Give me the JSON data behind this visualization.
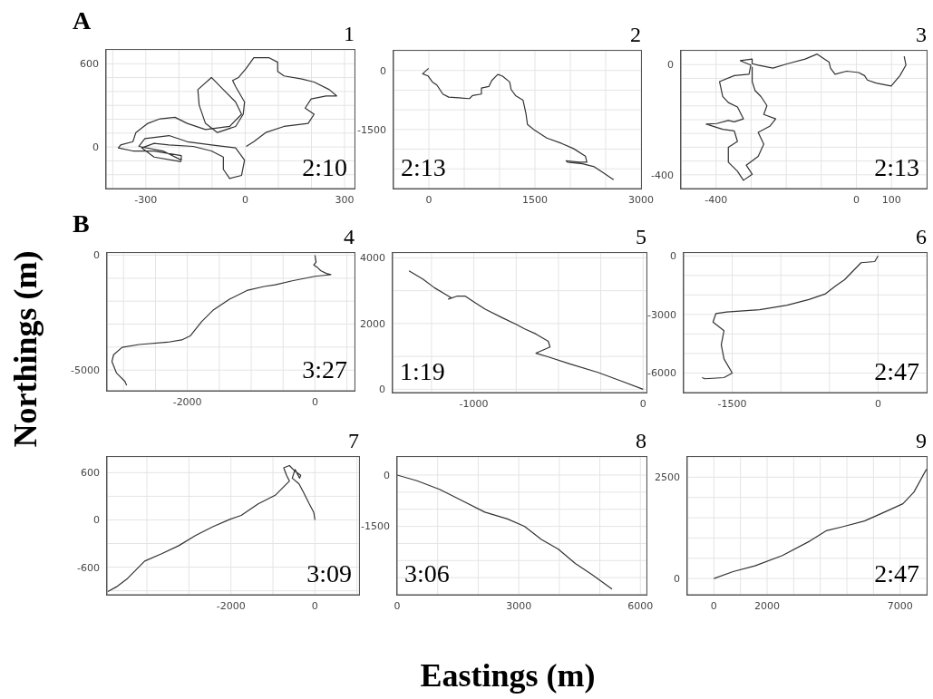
{
  "chart_data": [
    {
      "type": "line",
      "title": "1",
      "annotations": [
        "A",
        "2:10"
      ],
      "color": "#333333",
      "grid": true,
      "xlim": [
        -420,
        330
      ],
      "ylim": [
        -300,
        700
      ],
      "xticks": [
        {
          "value": -400,
          "label": null
        },
        -300,
        {
          "value": -200,
          "label": null
        },
        {
          "value": -100,
          "label": null
        },
        0,
        {
          "value": 100,
          "label": null
        },
        {
          "value": 200,
          "label": null
        },
        300
      ],
      "yticks": [
        {
          "value": -200,
          "label": null
        },
        {
          "value": -100,
          "label": null
        },
        0,
        {
          "value": 100,
          "label": null
        },
        {
          "value": 200,
          "label": null
        },
        {
          "value": 300,
          "label": null
        },
        {
          "value": 400,
          "label": null
        },
        {
          "value": 500,
          "label": null
        },
        600
      ],
      "x": [
        3,
        26,
        62,
        117,
        190,
        208,
        181,
        199,
        244,
        276,
        254,
        208,
        171,
        117,
        98,
        98,
        71,
        26,
        3,
        -20,
        -38,
        -29,
        -2,
        -6,
        -29,
        -84,
        -120,
        -139,
        -143,
        -102,
        -66,
        -29,
        -11,
        -47,
        -120,
        -175,
        -212,
        -257,
        -294,
        -330,
        -339,
        -376,
        -383,
        -339,
        -275,
        -193,
        -193,
        -248,
        -321,
        -303,
        -230,
        -175,
        -102,
        -29,
        -2,
        -11,
        -47,
        -66,
        -66,
        -102,
        -157,
        -230,
        -275,
        -312,
        -275,
        -193
      ],
      "values": [
        4,
        38,
        104,
        148,
        170,
        236,
        280,
        346,
        368,
        368,
        413,
        468,
        490,
        512,
        545,
        611,
        644,
        644,
        567,
        501,
        479,
        435,
        324,
        236,
        148,
        104,
        170,
        302,
        413,
        501,
        413,
        324,
        236,
        148,
        126,
        170,
        214,
        203,
        170,
        104,
        38,
        15,
        -7,
        -29,
        -29,
        -62,
        -95,
        -29,
        4,
        60,
        82,
        38,
        15,
        -7,
        -95,
        -205,
        -227,
        -161,
        -73,
        -29,
        4,
        15,
        26,
        -7,
        -73,
        -106
      ]
    },
    {
      "type": "line",
      "title": "2",
      "annotations": [
        "2:13"
      ],
      "color": "#333333",
      "grid": true,
      "xlim": [
        -500,
        3000
      ],
      "ylim": [
        -3000,
        500
      ],
      "xticks": [
        0,
        {
          "value": 500,
          "label": null
        },
        {
          "value": 1000,
          "label": null
        },
        1500,
        {
          "value": 2000,
          "label": null
        },
        {
          "value": 2500,
          "label": null
        },
        3000
      ],
      "yticks": [
        {
          "value": -2500,
          "label": null
        },
        {
          "value": -2000,
          "label": null
        },
        -1500,
        {
          "value": -1000,
          "label": null
        },
        {
          "value": -500,
          "label": null
        },
        0
      ],
      "x": [
        -4,
        -88,
        -13,
        50,
        113,
        197,
        281,
        575,
        617,
        743,
        743,
        848,
        890,
        974,
        1037,
        1142,
        1163,
        1226,
        1331,
        1373,
        1394,
        1499,
        1667,
        1877,
        2045,
        2213,
        2234,
        2129,
        1940,
        1961,
        2171,
        2339,
        2465,
        2612
      ],
      "values": [
        54,
        -85,
        -138,
        -292,
        -369,
        -600,
        -677,
        -715,
        -638,
        -600,
        -446,
        -408,
        -254,
        -100,
        -138,
        -292,
        -484,
        -638,
        -754,
        -1100,
        -1369,
        -1523,
        -1715,
        -1853,
        -1984,
        -2176,
        -2330,
        -2330,
        -2292,
        -2330,
        -2369,
        -2445,
        -2599,
        -2776
      ]
    },
    {
      "type": "line",
      "title": "3",
      "annotations": [
        "2:13"
      ],
      "color": "#333333",
      "grid": true,
      "xlim": [
        -500,
        200
      ],
      "ylim": [
        -450,
        50
      ],
      "xticks": [
        -400,
        {
          "value": -300,
          "label": null
        },
        {
          "value": -200,
          "label": null
        },
        {
          "value": -100,
          "label": null
        },
        0,
        100
      ],
      "yticks": [
        -400,
        {
          "value": -350,
          "label": null
        },
        {
          "value": -300,
          "label": null
        },
        {
          "value": -250,
          "label": null
        },
        {
          "value": -200,
          "label": null
        },
        {
          "value": -150,
          "label": null
        },
        {
          "value": -100,
          "label": null
        },
        {
          "value": -50,
          "label": null
        },
        0
      ],
      "x": [
        136,
        141,
        124,
        99,
        56,
        31,
        23,
        6,
        -28,
        -61,
        -74,
        -78,
        -112,
        -146,
        -196,
        -238,
        -280,
        -297,
        -297,
        -331,
        -301,
        -306,
        -348,
        -390,
        -381,
        -365,
        -339,
        -322,
        -348,
        -365,
        -398,
        -428,
        -381,
        -348,
        -339,
        -365,
        -365,
        -339,
        -322,
        -297,
        -314,
        -280,
        -264,
        -280,
        -247,
        -230,
        -264,
        -255,
        -272,
        -289,
        -297,
        -297
      ],
      "values": [
        30,
        -2,
        -40,
        -78,
        -67,
        -56,
        -40,
        -29,
        -24,
        -35,
        -13,
        9,
        38,
        20,
        3,
        -13,
        -2,
        3,
        20,
        14,
        -2,
        -35,
        -40,
        -62,
        -116,
        -138,
        -154,
        -197,
        -208,
        -203,
        -214,
        -216,
        -235,
        -241,
        -279,
        -300,
        -354,
        -387,
        -420,
        -398,
        -365,
        -333,
        -289,
        -246,
        -224,
        -197,
        -181,
        -149,
        -116,
        -94,
        -62,
        -8
      ]
    },
    {
      "type": "line",
      "title": "4",
      "ylabel": "Northings (m)",
      "annotations": [
        "B",
        "3:27"
      ],
      "color": "#333333",
      "grid": true,
      "xlim": [
        -3260,
        620
      ],
      "ylim": [
        -5900,
        100
      ],
      "xticks": [
        {
          "value": -3000,
          "label": null
        },
        {
          "value": -2500,
          "label": null
        },
        -2000,
        {
          "value": -1500,
          "label": null
        },
        {
          "value": -1000,
          "label": null
        },
        {
          "value": -500,
          "label": null
        },
        0,
        {
          "value": 500,
          "label": null
        }
      ],
      "yticks": [
        -5000,
        {
          "value": -4000,
          "label": null
        },
        {
          "value": -3000,
          "label": null
        },
        {
          "value": -2000,
          "label": null
        },
        {
          "value": -1000,
          "label": null
        },
        0
      ],
      "x": [
        0,
        18,
        -18,
        44,
        89,
        178,
        249,
        178,
        0,
        -356,
        -622,
        -800,
        -1067,
        -1334,
        -1600,
        -1778,
        -1956,
        -2089,
        -2311,
        -2756,
        -3023,
        -3156,
        -3183,
        -3112,
        -2978,
        -2952
      ],
      "values": [
        0,
        -297,
        -421,
        -545,
        -668,
        -792,
        -842,
        -866,
        -916,
        -1114,
        -1287,
        -1361,
        -1535,
        -1906,
        -2401,
        -2896,
        -3515,
        -3688,
        -3787,
        -3886,
        -4010,
        -4331,
        -4628,
        -5123,
        -5495,
        -5668
      ]
    },
    {
      "type": "line",
      "title": "5",
      "annotations": [
        "1:19"
      ],
      "color": "#333333",
      "grid": true,
      "xlim": [
        -1480,
        20
      ],
      "ylim": [
        -100,
        4150
      ],
      "xticks": [
        {
          "value": -1250,
          "label": null
        },
        -1000,
        {
          "value": -750,
          "label": null
        },
        {
          "value": -500,
          "label": null
        },
        {
          "value": -250,
          "label": null
        },
        0
      ],
      "yticks": [
        0,
        {
          "value": 1000,
          "label": null
        },
        2000,
        {
          "value": 3000,
          "label": null
        },
        4000
      ],
      "x": [
        -1383,
        -1300,
        -1233,
        -1167,
        -1133,
        -1150,
        -1100,
        -1050,
        -1000,
        -933,
        -833,
        -750,
        -700,
        -633,
        -560,
        -550,
        -633,
        -567,
        -433,
        -267,
        -133,
        0
      ],
      "values": [
        3606,
        3348,
        3091,
        2885,
        2782,
        2747,
        2833,
        2833,
        2661,
        2438,
        2181,
        1975,
        1837,
        1683,
        1459,
        1288,
        1099,
        996,
        773,
        515,
        258,
        0
      ]
    },
    {
      "type": "line",
      "title": "6",
      "annotations": [
        "2:47"
      ],
      "color": "#333333",
      "grid": true,
      "xlim": [
        -2000,
        500
      ],
      "ylim": [
        -7000,
        150
      ],
      "xticks": [
        -1500,
        {
          "value": -1000,
          "label": null
        },
        {
          "value": -500,
          "label": null
        },
        0
      ],
      "yticks": [
        -6000,
        {
          "value": -5000,
          "label": null
        },
        {
          "value": -4000,
          "label": null
        },
        -3000,
        {
          "value": -2000,
          "label": null
        },
        {
          "value": -1000,
          "label": null
        },
        0
      ],
      "x": [
        0,
        -34,
        -175,
        -231,
        -344,
        -429,
        -541,
        -711,
        -936,
        -1218,
        -1557,
        -1669,
        -1698,
        -1585,
        -1613,
        -1585,
        -1500,
        -1585,
        -1782,
        -1810
      ],
      "values": [
        0,
        -290,
        -348,
        -638,
        -1218,
        -1508,
        -1943,
        -2233,
        -2523,
        -2755,
        -2871,
        -2958,
        -3393,
        -3828,
        -4553,
        -5278,
        -6003,
        -6235,
        -6293,
        -6235
      ]
    },
    {
      "type": "line",
      "title": "7",
      "annotations": [
        "3:09"
      ],
      "color": "#333333",
      "grid": true,
      "xlim": [
        -4950,
        1050
      ],
      "ylim": [
        -950,
        800
      ],
      "xticks": [
        {
          "value": -4000,
          "label": null
        },
        {
          "value": -3000,
          "label": null
        },
        -2000,
        {
          "value": -1000,
          "label": null
        },
        0,
        {
          "value": 1000,
          "label": null
        }
      ],
      "yticks": [
        {
          "value": -900,
          "label": null
        },
        -600,
        {
          "value": -300,
          "label": null
        },
        0,
        {
          "value": 300,
          "label": null
        },
        600
      ],
      "x": [
        0,
        -27,
        -135,
        -270,
        -378,
        -540,
        -473,
        -365,
        -338,
        -473,
        -608,
        -743,
        -676,
        -608,
        -743,
        -946,
        -1351,
        -1756,
        -2027,
        -2432,
        -2837,
        -3242,
        -3648,
        -4053,
        -4458,
        -4728,
        -4931
      ],
      "values": [
        0,
        95,
        204,
        349,
        458,
        531,
        640,
        531,
        567,
        618,
        691,
        662,
        567,
        494,
        422,
        313,
        204,
        58,
        7,
        -87,
        -196,
        -327,
        -429,
        -523,
        -742,
        -851,
        -909
      ]
    },
    {
      "type": "line",
      "title": "8",
      "xlabel": "Eastings (m)",
      "annotations": [
        "3:06"
      ],
      "color": "#333333",
      "grid": true,
      "xlim": [
        0,
        6150
      ],
      "ylim": [
        -3500,
        530
      ],
      "xticks": [
        0,
        {
          "value": 1000,
          "label": null
        },
        {
          "value": 2000,
          "label": null
        },
        3000,
        {
          "value": 4000,
          "label": null
        },
        {
          "value": 5000,
          "label": null
        },
        6000
      ],
      "yticks": [
        {
          "value": -3000,
          "label": null
        },
        {
          "value": -2500,
          "label": null
        },
        {
          "value": -2000,
          "label": null
        },
        -1500,
        {
          "value": -1000,
          "label": null
        },
        {
          "value": -500,
          "label": null
        },
        0
      ],
      "x": [
        0,
        488,
        1046,
        1604,
        2162,
        2720,
        3139,
        3557,
        3976,
        4394,
        4813,
        5301
      ],
      "values": [
        0,
        -167,
        -417,
        -750,
        -1084,
        -1284,
        -1500,
        -1884,
        -2167,
        -2584,
        -2917,
        -3334
      ]
    },
    {
      "type": "line",
      "title": "9",
      "annotations": [
        "2:47"
      ],
      "color": "#333333",
      "grid": true,
      "xlim": [
        -1000,
        8000
      ],
      "ylim": [
        -400,
        3000
      ],
      "xticks": [
        0,
        {
          "value": 1000,
          "label": null
        },
        2000,
        {
          "value": 3000,
          "label": null
        },
        {
          "value": 4000,
          "label": null
        },
        {
          "value": 5000,
          "label": null
        },
        {
          "value": 6000,
          "label": null
        },
        7000
      ],
      "yticks": [
        0,
        {
          "value": 500,
          "label": null
        },
        {
          "value": 1000,
          "label": null
        },
        {
          "value": 1500,
          "label": null
        },
        {
          "value": 2000,
          "label": null
        },
        2500
      ],
      "x": [
        0,
        721,
        1545,
        2575,
        3605,
        4223,
        4841,
        5665,
        6489,
        7107,
        7519,
        7993
      ],
      "values": [
        0,
        170,
        312,
        568,
        923,
        1179,
        1278,
        1420,
        1661,
        1846,
        2130,
        2698
      ]
    }
  ]
}
